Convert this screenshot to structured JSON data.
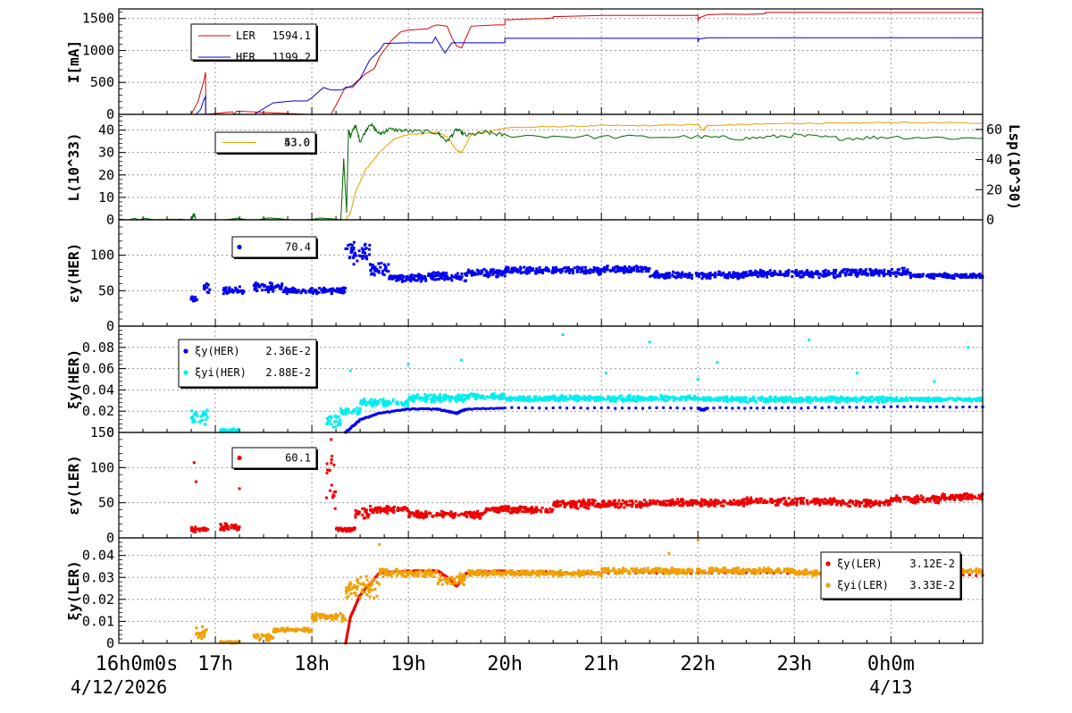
{
  "x_axis": {
    "start_hour": 16,
    "end_hour": 24.95,
    "tick_labels": [
      {
        "hour": 16,
        "label": "16h0m0s"
      },
      {
        "hour": 17,
        "label": "17h"
      },
      {
        "hour": 18,
        "label": "18h"
      },
      {
        "hour": 19,
        "label": "19h"
      },
      {
        "hour": 20,
        "label": "20h"
      },
      {
        "hour": 21,
        "label": "21h"
      },
      {
        "hour": 22,
        "label": "22h"
      },
      {
        "hour": 23,
        "label": "23h"
      },
      {
        "hour": 24,
        "label": "0h0m"
      }
    ],
    "dates": [
      {
        "hour": 16,
        "label": "4/12/2026"
      },
      {
        "hour": 24,
        "label": "4/13"
      }
    ]
  },
  "chart_data": [
    {
      "type": "line",
      "ylabel": "I[mA]",
      "ylim": [
        0,
        1650
      ],
      "yticks": [
        0,
        500,
        1000,
        1500
      ],
      "grid": true,
      "legend_placement": "top-left",
      "series": [
        {
          "name": "LER",
          "legend_value": "1594.1",
          "color": "#dd0000",
          "x": [
            16,
            16.75,
            16.82,
            16.88,
            16.9,
            16.9,
            17.18,
            17.2,
            17.22,
            17.95,
            18.2,
            18.35,
            18.42,
            18.48,
            18.55,
            18.65,
            18.7,
            18.82,
            18.92,
            19,
            19.2,
            19.25,
            19.3,
            19.4,
            19.45,
            19.5,
            19.55,
            19.65,
            19.9,
            20,
            20,
            20.2,
            20.4,
            20.5,
            20.5,
            20.8,
            21,
            22,
            22,
            22.01,
            22.1,
            22.3,
            22.5,
            22.7,
            22.7,
            23,
            24,
            24.95
          ],
          "y": [
            0,
            0,
            200,
            520,
            660,
            0,
            40,
            0,
            50,
            0,
            0,
            430,
            420,
            520,
            630,
            720,
            900,
            1150,
            1290,
            1320,
            1340,
            1380,
            1400,
            1380,
            1200,
            1070,
            1040,
            1380,
            1400,
            1400,
            1480,
            1490,
            1500,
            1510,
            1530,
            1540,
            1550,
            1550,
            1450,
            1510,
            1560,
            1570,
            1565,
            1575,
            1595,
            1595,
            1594,
            1594
          ]
        },
        {
          "name": "HER",
          "legend_value": "1199.2",
          "color": "#0000cc",
          "x": [
            16,
            16.8,
            16.85,
            16.88,
            16.9,
            16.9,
            17.4,
            17.6,
            17.8,
            17.95,
            18,
            18.12,
            18.2,
            18.3,
            18.42,
            18.5,
            18.6,
            18.7,
            18.75,
            19,
            19.25,
            19.28,
            19.33,
            19.38,
            19.45,
            19.55,
            19.6,
            19.9,
            20,
            20,
            20.5,
            21,
            22,
            22,
            22.01,
            22.1,
            23,
            24,
            24.95
          ],
          "y": [
            0,
            0,
            80,
            230,
            280,
            0,
            0,
            180,
            210,
            210,
            260,
            420,
            380,
            380,
            450,
            560,
            850,
            1000,
            1110,
            1120,
            1120,
            1210,
            1080,
            960,
            1120,
            1120,
            1120,
            1120,
            1120,
            1190,
            1190,
            1190,
            1190,
            1130,
            1180,
            1200,
            1200,
            1200,
            1199
          ]
        }
      ]
    },
    {
      "type": "line",
      "ylabel": "L(10^33)",
      "ylim": [
        0,
        47
      ],
      "yticks": [
        0,
        10,
        20,
        30,
        40
      ],
      "ylabel_right": "Lsp(10^30)",
      "ylim_right": [
        0,
        70
      ],
      "yticks_right": [
        0,
        20,
        40,
        60
      ],
      "legend_placement": "top-left",
      "legend_values": [
        "53.0",
        "43.0"
      ],
      "series": [
        {
          "name": "L",
          "axis": "left",
          "color": "#e8a000",
          "x": [
            16,
            18.35,
            18.4,
            18.45,
            18.55,
            18.7,
            18.85,
            19,
            19.3,
            19.4,
            19.5,
            19.55,
            19.65,
            19.8,
            20,
            20.5,
            21,
            21.5,
            22,
            22.05,
            22.1,
            22.5,
            23,
            23.5,
            24,
            24.95
          ],
          "y": [
            0,
            0,
            3,
            12,
            22,
            30,
            36,
            38,
            39,
            37,
            31,
            30,
            38,
            39,
            41,
            41.5,
            42,
            42,
            42.5,
            40,
            42,
            42.5,
            43,
            43,
            43.5,
            43
          ]
        },
        {
          "name": "Lsp",
          "axis": "right",
          "color": "#006600",
          "x": [
            16,
            16.75,
            16.78,
            16.8,
            18.3,
            18.33,
            18.36,
            18.38,
            18.4,
            18.45,
            18.5,
            18.6,
            18.7,
            18.8,
            19,
            19.3,
            19.4,
            19.5,
            19.6,
            19.8,
            20,
            21,
            22,
            22.5,
            23,
            23.5,
            24,
            24.95
          ],
          "y": [
            0,
            0,
            4,
            0,
            0,
            40,
            5,
            60,
            55,
            63,
            52,
            64,
            57,
            60,
            59,
            58,
            52,
            60,
            56,
            58,
            56,
            55,
            55,
            54,
            56,
            54,
            55,
            54
          ]
        }
      ]
    },
    {
      "type": "scatter",
      "ylabel": "εy(HER)",
      "ylim": [
        0,
        150
      ],
      "yticks": [
        0,
        50,
        100
      ],
      "legend_placement": "top-left",
      "series": [
        {
          "name": "",
          "legend_value": "70.4",
          "color": "#0000ee",
          "segments": [
            [
              16.75,
              16.82,
              38,
              6
            ],
            [
              16.88,
              16.95,
              55,
              8
            ],
            [
              17.08,
              17.3,
              50,
              6
            ],
            [
              17.4,
              17.7,
              55,
              8
            ],
            [
              17.7,
              18.35,
              50,
              5
            ],
            [
              18.35,
              18.6,
              105,
              18
            ],
            [
              18.6,
              18.8,
              80,
              10
            ],
            [
              18.8,
              19.2,
              68,
              6
            ],
            [
              19.2,
              19.6,
              70,
              7
            ],
            [
              19.6,
              20,
              75,
              6
            ],
            [
              20,
              21,
              78,
              6
            ],
            [
              21,
              21.5,
              80,
              6
            ],
            [
              21.5,
              22.5,
              72,
              6
            ],
            [
              22.5,
              23.5,
              74,
              6
            ],
            [
              23.5,
              24.2,
              76,
              6
            ],
            [
              24.2,
              24.95,
              71,
              4
            ]
          ]
        }
      ]
    },
    {
      "type": "scatter",
      "ylabel": "ξy(HER)",
      "ylim": [
        0,
        0.1
      ],
      "yticks": [
        0,
        0.02,
        0.04,
        0.06,
        0.08
      ],
      "legend_placement": "top-left",
      "series": [
        {
          "name": "ξy(HER)",
          "legend_value": "2.36E-2",
          "color": "#0000ee",
          "x": [
            18.35,
            18.5,
            18.7,
            19,
            19.3,
            19.5,
            19.6,
            20,
            21,
            22,
            22.05,
            22.1,
            23,
            24,
            24.95
          ],
          "y": [
            0.0,
            0.012,
            0.018,
            0.022,
            0.022,
            0.018,
            0.022,
            0.023,
            0.023,
            0.023,
            0.021,
            0.023,
            0.023,
            0.024,
            0.024
          ]
        },
        {
          "name": "ξyi(HER)",
          "legend_value": "2.88E-2",
          "color": "#00eeee",
          "segments": [
            [
              16.75,
              16.92,
              0.015,
              0.01
            ],
            [
              17.05,
              17.25,
              0.002,
              0.002
            ],
            [
              18.15,
              18.3,
              0.01,
              0.008
            ],
            [
              18.3,
              18.5,
              0.02,
              0.004
            ],
            [
              18.5,
              19,
              0.028,
              0.004
            ],
            [
              19,
              19.6,
              0.032,
              0.004
            ],
            [
              19.6,
              20,
              0.034,
              0.003
            ],
            [
              20,
              22,
              0.032,
              0.003
            ],
            [
              22,
              24,
              0.031,
              0.003
            ],
            [
              24,
              24.95,
              0.031,
              0.002
            ]
          ],
          "outliers": [
            [
              20.6,
              0.092
            ],
            [
              21.5,
              0.085
            ],
            [
              23.15,
              0.087
            ],
            [
              24.8,
              0.08
            ],
            [
              19,
              0.064
            ],
            [
              19.55,
              0.068
            ],
            [
              22.2,
              0.066
            ],
            [
              18.4,
              0.058
            ],
            [
              21.05,
              0.056
            ],
            [
              23.65,
              0.056
            ],
            [
              22,
              0.05
            ],
            [
              24.45,
              0.048
            ]
          ]
        }
      ]
    },
    {
      "type": "scatter",
      "ylabel": "εy(LER)",
      "ylim": [
        0,
        150
      ],
      "yticks": [
        0,
        50,
        100,
        150
      ],
      "legend_placement": "top-left",
      "series": [
        {
          "name": "",
          "legend_value": "60.1",
          "color": "#ee0000",
          "segments": [
            [
              16.75,
              16.92,
              12,
              4
            ],
            [
              17.05,
              17.25,
              15,
              6
            ],
            [
              18.15,
              18.25,
              80,
              50
            ],
            [
              18.25,
              18.45,
              12,
              4
            ],
            [
              18.45,
              18.6,
              35,
              8
            ],
            [
              18.6,
              19,
              40,
              6
            ],
            [
              19,
              19.8,
              33,
              6
            ],
            [
              19.8,
              20.5,
              40,
              6
            ],
            [
              20.5,
              21.5,
              48,
              7
            ],
            [
              21.5,
              22.5,
              50,
              6
            ],
            [
              22.5,
              23.5,
              52,
              6
            ],
            [
              23.5,
              24,
              50,
              6
            ],
            [
              24,
              24.5,
              55,
              6
            ],
            [
              24.5,
              24.95,
              58,
              5
            ]
          ],
          "outliers": [
            [
              16.78,
              107
            ],
            [
              17.22,
              100
            ],
            [
              16.8,
              80
            ],
            [
              17.25,
              70
            ],
            [
              18.2,
              140
            ]
          ]
        }
      ]
    },
    {
      "type": "scatter",
      "ylabel": "ξy(LER)",
      "ylim": [
        0,
        0.048
      ],
      "yticks": [
        0,
        0.01,
        0.02,
        0.03,
        0.04
      ],
      "legend_placement": "top-right",
      "series": [
        {
          "name": "ξy(LER)",
          "legend_value": "3.12E-2",
          "color": "#ee0000",
          "x": [
            18.35,
            18.4,
            18.5,
            18.7,
            19,
            19.3,
            19.4,
            19.5,
            19.6,
            20,
            21,
            22,
            23,
            24,
            24.95
          ],
          "y": [
            0,
            0.012,
            0.022,
            0.032,
            0.033,
            0.033,
            0.03,
            0.026,
            0.032,
            0.033,
            0.032,
            0.032,
            0.032,
            0.031,
            0.031
          ]
        },
        {
          "name": "ξyi(LER)",
          "legend_value": "3.33E-2",
          "color": "#f0a000",
          "segments": [
            [
              16.8,
              16.92,
              0.004,
              0.004
            ],
            [
              17.05,
              17.25,
              0.0005,
              0.0005
            ],
            [
              17.4,
              17.6,
              0.003,
              0.002
            ],
            [
              17.6,
              18,
              0.006,
              0.001
            ],
            [
              18,
              18.35,
              0.012,
              0.002
            ],
            [
              18.35,
              18.7,
              0.025,
              0.006
            ],
            [
              18.7,
              19.3,
              0.032,
              0.002
            ],
            [
              19.3,
              19.6,
              0.029,
              0.003
            ],
            [
              19.6,
              21,
              0.032,
              0.0015
            ],
            [
              21,
              22,
              0.033,
              0.0015
            ],
            [
              22,
              23,
              0.033,
              0.0015
            ],
            [
              23,
              24,
              0.032,
              0.0015
            ],
            [
              24,
              24.95,
              0.033,
              0.0012
            ]
          ],
          "outliers": [
            [
              18.7,
              0.045
            ],
            [
              21.7,
              0.041
            ],
            [
              22,
              0.047
            ]
          ]
        }
      ]
    }
  ]
}
